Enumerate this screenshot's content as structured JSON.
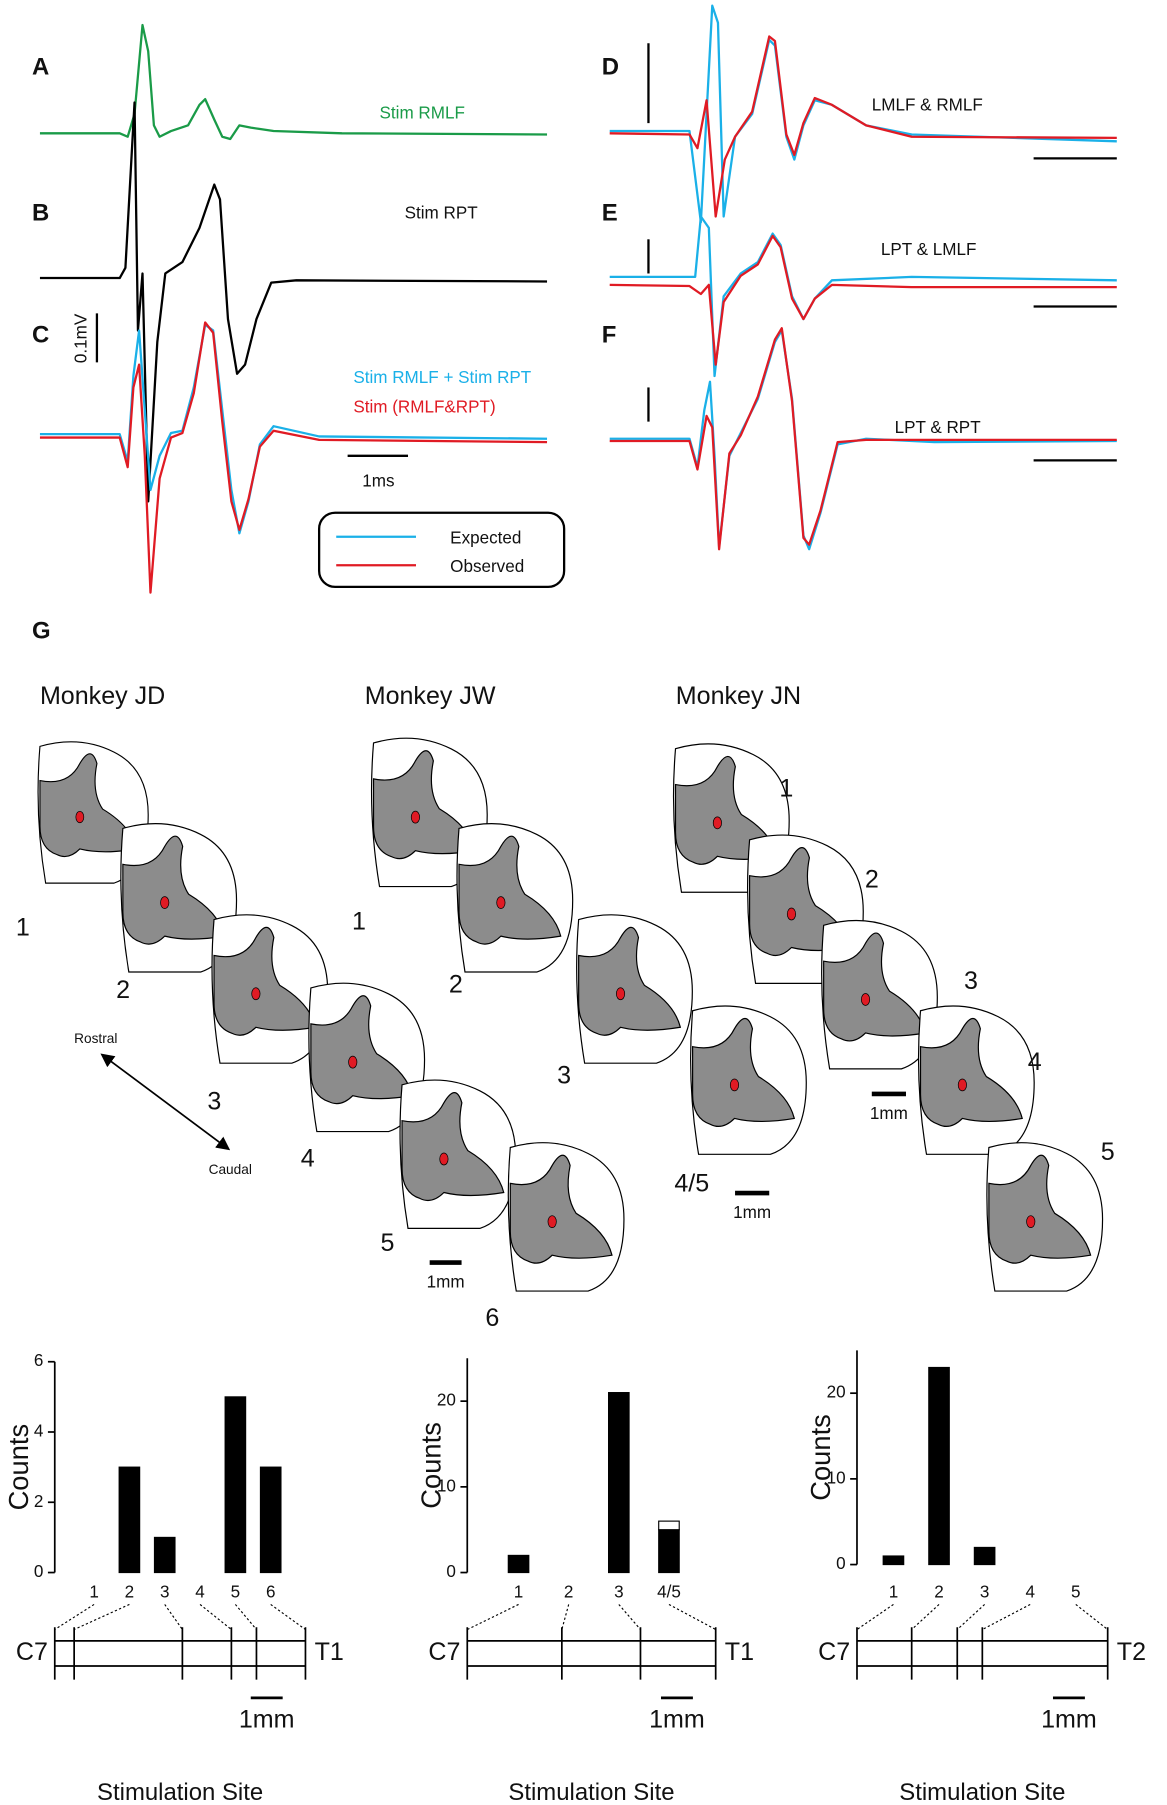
{
  "trace_panels": [
    {
      "letter": "A",
      "label": "Stim RMLF"
    },
    {
      "letter": "B",
      "label": "Stim RPT"
    },
    {
      "letter": "C",
      "label": "Stim RMLF + Stim RPT",
      "label2": "Stim (RMLF&RPT)"
    },
    {
      "letter": "D",
      "label": "LMLF & RMLF"
    },
    {
      "letter": "E",
      "label": "LPT & LMLF"
    },
    {
      "letter": "F",
      "label": "LPT & RPT"
    }
  ],
  "scale_bars": {
    "voltage": "0.1mV",
    "time": "1ms"
  },
  "legend": [
    "Expected",
    "Observed"
  ],
  "sections": {
    "letter": "G",
    "rostral": "Rostral",
    "caudal": "Caudal",
    "monkeys": [
      {
        "name": "Monkey JD",
        "sites": [
          "1",
          "2",
          "3",
          "4",
          "5",
          "6"
        ],
        "scale": "1mm"
      },
      {
        "name": "Monkey JW",
        "sites": [
          "1",
          "2",
          "3",
          "4/5"
        ],
        "scale": "1mm"
      },
      {
        "name": "Monkey JN",
        "sites": [
          "1",
          "2",
          "3",
          "4",
          "5"
        ],
        "scale": "1mm"
      }
    ]
  },
  "chart_data": [
    {
      "type": "bar",
      "y_label": "Counts",
      "x_label": "Stimulation Site",
      "categories": [
        "1",
        "2",
        "3",
        "4",
        "5",
        "6"
      ],
      "series": [
        {
          "color": "#000000",
          "values": [
            0,
            3,
            1,
            0,
            5,
            3
          ]
        }
      ],
      "ylim": [
        0,
        6
      ],
      "yticks": [
        0,
        2,
        4,
        6
      ],
      "segment_labels": [
        "C7",
        "T1"
      ],
      "scale_label": "1mm"
    },
    {
      "type": "bar",
      "y_label": "Counts",
      "x_label": "Stimulation Site",
      "categories": [
        "1",
        "2",
        "3",
        "4/5"
      ],
      "series": [
        {
          "color": "#000000",
          "values": [
            2,
            0,
            21,
            5
          ]
        },
        {
          "color": "#ffffff",
          "values": [
            0,
            0,
            0,
            1
          ]
        }
      ],
      "ylim": [
        0,
        25
      ],
      "yticks": [
        0,
        10,
        20
      ],
      "segment_labels": [
        "C7",
        "T1"
      ],
      "scale_label": "1mm"
    },
    {
      "type": "bar",
      "y_label": "Counts",
      "x_label": "Stimulation Site",
      "categories": [
        "1",
        "2",
        "3",
        "4",
        "5"
      ],
      "series": [
        {
          "color": "#000000",
          "values": [
            1,
            23,
            2,
            0,
            0
          ]
        }
      ],
      "ylim": [
        0,
        25
      ],
      "yticks": [
        0,
        10,
        20
      ],
      "segment_labels": [
        "C7",
        "T2"
      ],
      "scale_label": "1mm"
    }
  ]
}
